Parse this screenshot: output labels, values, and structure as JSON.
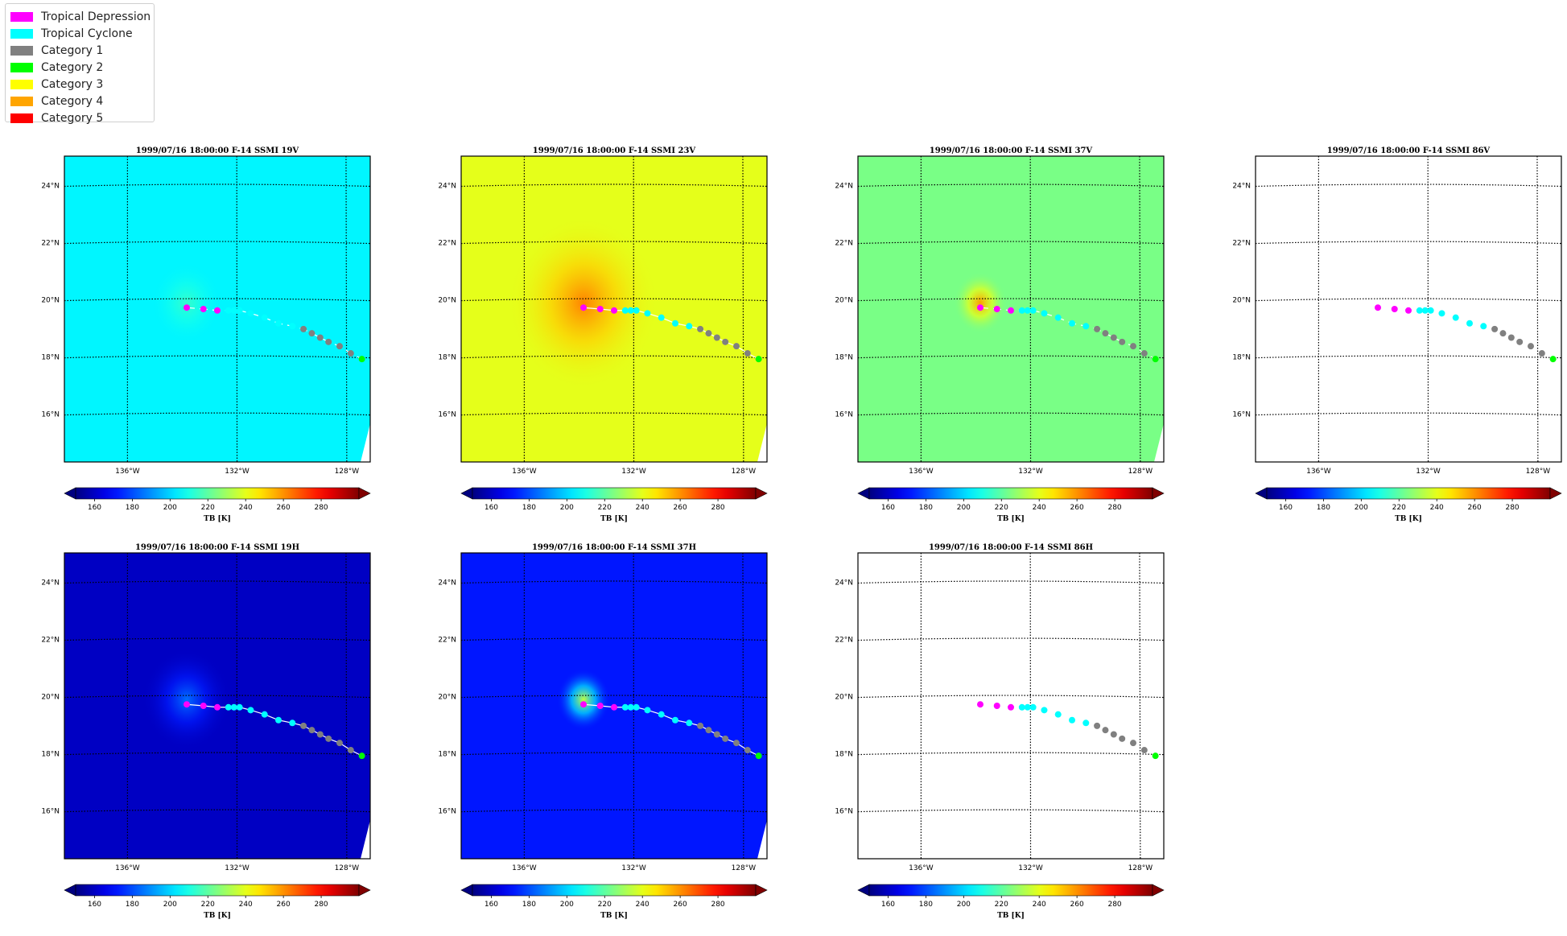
{
  "legend": {
    "items": [
      {
        "label": "Tropical Depression",
        "color": "#ff00ff"
      },
      {
        "label": "Tropical Cyclone",
        "color": "#00ffff"
      },
      {
        "label": "Category 1",
        "color": "#808080"
      },
      {
        "label": "Category 2",
        "color": "#00ff00"
      },
      {
        "label": "Category 3",
        "color": "#ffff00"
      },
      {
        "label": "Category 4",
        "color": "#ffa500"
      },
      {
        "label": "Category 5",
        "color": "#ff0000"
      }
    ]
  },
  "chart_data": [
    {
      "type": "heatmap",
      "title": "1999/07/16 18:00:00  F-14 SSMI 19V",
      "background_tb": 205,
      "has_data": true,
      "eye_tb": 214,
      "eye_sigma": 0.8,
      "track_line": "dashed"
    },
    {
      "type": "heatmap",
      "title": "1999/07/16 18:00:00  F-14 SSMI 23V",
      "background_tb": 240,
      "has_data": true,
      "eye_tb": 262,
      "eye_sigma": 1.7,
      "track_line": "solid"
    },
    {
      "type": "heatmap",
      "title": "1999/07/16 18:00:00  F-14 SSMI 37V",
      "background_tb": 224,
      "has_data": true,
      "eye_tb": 258,
      "eye_sigma": 0.6,
      "track_line": "dashed"
    },
    {
      "type": "heatmap",
      "title": "1999/07/16 18:00:00  F-14 SSMI 86V",
      "background_tb": null,
      "has_data": false,
      "track_line": "none"
    },
    {
      "type": "heatmap",
      "title": "1999/07/16 18:00:00  F-14 SSMI 19H",
      "background_tb": 160,
      "has_data": true,
      "eye_tb": 185,
      "eye_sigma": 1.0,
      "track_line": "solid"
    },
    {
      "type": "heatmap",
      "title": "1999/07/16 18:00:00  F-14 SSMI 37H",
      "background_tb": 172,
      "has_data": true,
      "eye_tb": 235,
      "eye_sigma": 0.6,
      "track_line": "solid"
    },
    {
      "type": "heatmap",
      "title": "1999/07/16 18:00:00  F-14 SSMI 86H",
      "background_tb": null,
      "has_data": false,
      "track_line": "none"
    }
  ],
  "map": {
    "lon_range": [
      -138.2,
      -127.2
    ],
    "lat_range": [
      14.3,
      25.0
    ],
    "lon_ticks": [
      -136,
      -132,
      -128
    ],
    "lon_tick_labels": [
      "136°W",
      "132°W",
      "128°W"
    ],
    "lat_ticks": [
      16,
      18,
      20,
      22,
      24
    ],
    "lat_tick_labels": [
      "16°N",
      "18°N",
      "20°N",
      "22°N",
      "24°N"
    ],
    "grid_style": "dotted"
  },
  "track": [
    {
      "lon": -133.8,
      "lat": 19.7,
      "category": "Tropical Depression"
    },
    {
      "lon": -133.2,
      "lat": 19.65,
      "category": "Tropical Depression"
    },
    {
      "lon": -132.7,
      "lat": 19.6,
      "category": "Tropical Depression"
    },
    {
      "lon": -132.3,
      "lat": 19.6,
      "category": "Tropical Cyclone"
    },
    {
      "lon": -132.1,
      "lat": 19.6,
      "category": "Tropical Cyclone"
    },
    {
      "lon": -131.9,
      "lat": 19.6,
      "category": "Tropical Cyclone"
    },
    {
      "lon": -131.5,
      "lat": 19.5,
      "category": "Tropical Cyclone"
    },
    {
      "lon": -131.0,
      "lat": 19.35,
      "category": "Tropical Cyclone"
    },
    {
      "lon": -130.5,
      "lat": 19.15,
      "category": "Tropical Cyclone"
    },
    {
      "lon": -130.0,
      "lat": 19.05,
      "category": "Tropical Cyclone"
    },
    {
      "lon": -129.6,
      "lat": 18.95,
      "category": "Category 1"
    },
    {
      "lon": -129.3,
      "lat": 18.8,
      "category": "Category 1"
    },
    {
      "lon": -129.0,
      "lat": 18.65,
      "category": "Category 1"
    },
    {
      "lon": -128.7,
      "lat": 18.5,
      "category": "Category 1"
    },
    {
      "lon": -128.3,
      "lat": 18.35,
      "category": "Category 1"
    },
    {
      "lon": -127.9,
      "lat": 18.1,
      "category": "Category 1"
    },
    {
      "lon": -127.5,
      "lat": 17.9,
      "category": "Category 2"
    }
  ],
  "colorbar": {
    "min": 150,
    "max": 300,
    "ticks": [
      160,
      180,
      200,
      220,
      240,
      260,
      280
    ],
    "label": "TB [K]",
    "colormap": "jet",
    "extend": "both"
  }
}
